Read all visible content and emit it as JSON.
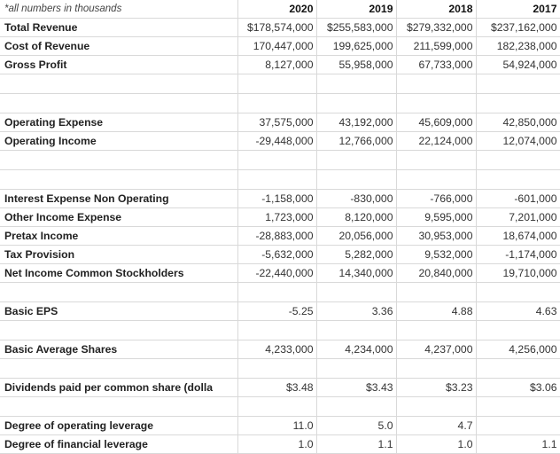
{
  "sheet": {
    "note": "*all numbers in thousands",
    "years": [
      "2020",
      "2019",
      "2018",
      "2017"
    ],
    "rows": [
      {
        "label": "Total Revenue",
        "values": [
          "$178,574,000",
          "$255,583,000",
          "$279,332,000",
          "$237,162,000"
        ]
      },
      {
        "label": "Cost of Revenue",
        "values": [
          "170,447,000",
          "199,625,000",
          "211,599,000",
          "182,238,000"
        ]
      },
      {
        "label": "Gross Profit",
        "values": [
          "8,127,000",
          "55,958,000",
          "67,733,000",
          "54,924,000"
        ]
      },
      {
        "label": "",
        "values": [
          "",
          "",
          "",
          ""
        ]
      },
      {
        "label": "",
        "values": [
          "",
          "",
          "",
          ""
        ]
      },
      {
        "label": "Operating Expense",
        "values": [
          "37,575,000",
          "43,192,000",
          "45,609,000",
          "42,850,000"
        ]
      },
      {
        "label": "Operating Income",
        "values": [
          "-29,448,000",
          "12,766,000",
          "22,124,000",
          "12,074,000"
        ]
      },
      {
        "label": "",
        "values": [
          "",
          "",
          "",
          ""
        ]
      },
      {
        "label": "",
        "values": [
          "",
          "",
          "",
          ""
        ]
      },
      {
        "label": "Interest Expense Non Operating",
        "values": [
          "-1,158,000",
          "-830,000",
          "-766,000",
          "-601,000"
        ]
      },
      {
        "label": "Other Income Expense",
        "values": [
          "1,723,000",
          "8,120,000",
          "9,595,000",
          "7,201,000"
        ]
      },
      {
        "label": "Pretax Income",
        "values": [
          "-28,883,000",
          "20,056,000",
          "30,953,000",
          "18,674,000"
        ]
      },
      {
        "label": "Tax Provision",
        "values": [
          "-5,632,000",
          "5,282,000",
          "9,532,000",
          "-1,174,000"
        ]
      },
      {
        "label": "Net Income Common Stockholders",
        "values": [
          "-22,440,000",
          "14,340,000",
          "20,840,000",
          "19,710,000"
        ]
      },
      {
        "label": "",
        "values": [
          "",
          "",
          "",
          ""
        ]
      },
      {
        "label": "Basic EPS",
        "values": [
          "-5.25",
          "3.36",
          "4.88",
          "4.63"
        ]
      },
      {
        "label": "",
        "values": [
          "",
          "",
          "",
          ""
        ]
      },
      {
        "label": "Basic Average Shares",
        "values": [
          "4,233,000",
          "4,234,000",
          "4,237,000",
          "4,256,000"
        ]
      },
      {
        "label": "",
        "values": [
          "",
          "",
          "",
          ""
        ]
      },
      {
        "label": "Dividends paid per common share (dolla",
        "values": [
          "$3.48",
          "$3.43",
          "$3.23",
          "$3.06"
        ]
      },
      {
        "label": "",
        "values": [
          "",
          "",
          "",
          ""
        ]
      },
      {
        "label": "Degree of operating leverage",
        "values": [
          "11.0",
          "5.0",
          "4.7",
          ""
        ]
      },
      {
        "label": "Degree of financial leverage",
        "values": [
          "1.0",
          "1.1",
          "1.0",
          "1.1"
        ]
      }
    ]
  }
}
